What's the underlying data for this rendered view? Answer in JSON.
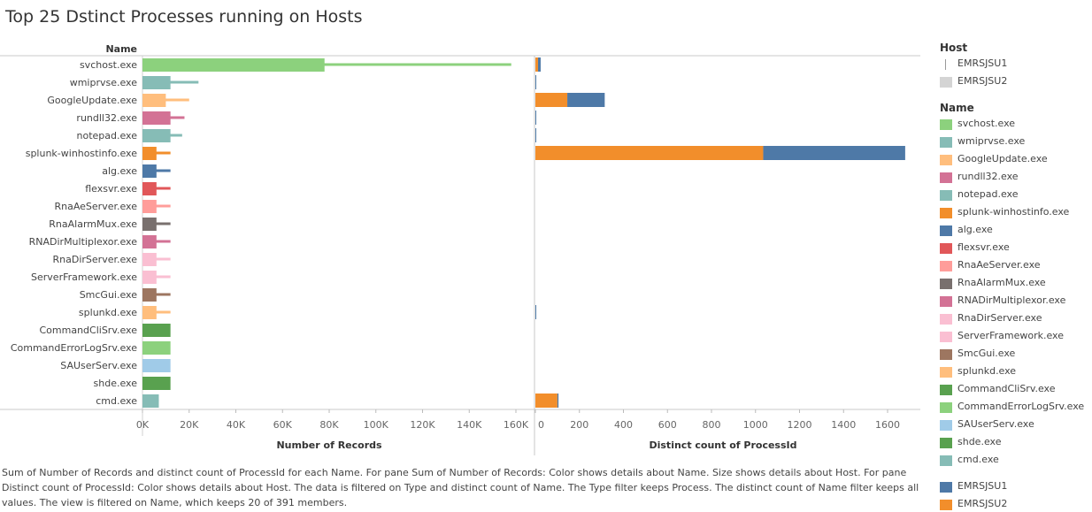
{
  "title": "Top 25 Dstinct Processes running on Hosts",
  "caption": "Sum of Number of Records and distinct count of ProcessId for each Name.  For pane Sum of Number of Records:  Color shows details about Name.  Size shows details about Host.  For pane Distinct count of ProcessId:  Color shows details about Host. The data is filtered on Type and distinct count of Name. The Type filter keeps Process. The distinct count of Name filter keeps all values. The view is filtered on Name, which keeps 20 of 391 members.",
  "legend": {
    "host_header": "Host",
    "host_items": [
      {
        "label": "EMRSJSU1",
        "icon": "thin-line"
      },
      {
        "label": "EMRSJSU2",
        "icon": "thick-bar",
        "color": "#d4d4d4"
      }
    ],
    "name_header": "Name",
    "name_items": [
      {
        "label": "svchost.exe",
        "color": "#8cd17d"
      },
      {
        "label": "wmiprvse.exe",
        "color": "#86bcb6"
      },
      {
        "label": "GoogleUpdate.exe",
        "color": "#ffbe7d"
      },
      {
        "label": "rundll32.exe",
        "color": "#d37295"
      },
      {
        "label": "notepad.exe",
        "color": "#86bcb6"
      },
      {
        "label": "splunk-winhostinfo.exe",
        "color": "#f28e2b"
      },
      {
        "label": "alg.exe",
        "color": "#4e79a7"
      },
      {
        "label": "flexsvr.exe",
        "color": "#e15759"
      },
      {
        "label": "RnaAeServer.exe",
        "color": "#ff9d9a"
      },
      {
        "label": "RnaAlarmMux.exe",
        "color": "#79706e"
      },
      {
        "label": "RNADirMultiplexor.exe",
        "color": "#d37295"
      },
      {
        "label": "RnaDirServer.exe",
        "color": "#fabfd2"
      },
      {
        "label": "ServerFramework.exe",
        "color": "#fabfd2"
      },
      {
        "label": "SmcGui.exe",
        "color": "#9d7660"
      },
      {
        "label": "splunkd.exe",
        "color": "#ffbe7d"
      },
      {
        "label": "CommandCliSrv.exe",
        "color": "#59a14f"
      },
      {
        "label": "CommandErrorLogSrv.exe",
        "color": "#8cd17d"
      },
      {
        "label": "SAUserServ.exe",
        "color": "#a0cbe8"
      },
      {
        "label": "shde.exe",
        "color": "#59a14f"
      },
      {
        "label": "cmd.exe",
        "color": "#86bcb6"
      }
    ],
    "host_color_items": [
      {
        "label": "EMRSJSU1",
        "color": "#4e79a7"
      },
      {
        "label": "EMRSJSU2",
        "color": "#f28e2b"
      }
    ]
  },
  "chart_data": [
    {
      "type": "bar",
      "orientation": "horizontal",
      "row_header": "Name",
      "xlabel": "Number of Records",
      "xlim": [
        0,
        160000
      ],
      "ticks": [
        "0K",
        "20K",
        "40K",
        "60K",
        "80K",
        "100K",
        "120K",
        "140K",
        "160K"
      ],
      "encoding": "thick bar = EMRSJSU2, thin line = EMRSJSU1, color = Name",
      "categories": [
        "svchost.exe",
        "wmiprvse.exe",
        "GoogleUpdate.exe",
        "rundll32.exe",
        "notepad.exe",
        "splunk-winhostinfo.exe",
        "alg.exe",
        "flexsvr.exe",
        "RnaAeServer.exe",
        "RnaAlarmMux.exe",
        "RNADirMultiplexor.exe",
        "RnaDirServer.exe",
        "ServerFramework.exe",
        "SmcGui.exe",
        "splunkd.exe",
        "CommandCliSrv.exe",
        "CommandErrorLogSrv.exe",
        "SAUserServ.exe",
        "shde.exe",
        "cmd.exe"
      ],
      "series": [
        {
          "name": "EMRSJSU1",
          "values": [
            158000,
            24000,
            20000,
            18000,
            17000,
            12000,
            12000,
            12000,
            12000,
            12000,
            12000,
            12000,
            12000,
            12000,
            12000,
            0,
            0,
            0,
            0,
            7000
          ]
        },
        {
          "name": "EMRSJSU2",
          "values": [
            78000,
            12000,
            10000,
            12000,
            12000,
            6000,
            6000,
            6000,
            6000,
            6000,
            6000,
            6000,
            6000,
            6000,
            6000,
            12000,
            12000,
            12000,
            12000,
            7000
          ]
        }
      ]
    },
    {
      "type": "bar",
      "orientation": "horizontal",
      "stacked": true,
      "xlabel": "Distinct count of ProcessId",
      "xlim": [
        0,
        1680
      ],
      "ticks": [
        "0",
        "200",
        "400",
        "600",
        "800",
        "1000",
        "1200",
        "1400",
        "1600"
      ],
      "categories": [
        "svchost.exe",
        "wmiprvse.exe",
        "GoogleUpdate.exe",
        "rundll32.exe",
        "notepad.exe",
        "splunk-winhostinfo.exe",
        "alg.exe",
        "flexsvr.exe",
        "RnaAeServer.exe",
        "RnaAlarmMux.exe",
        "RNADirMultiplexor.exe",
        "RnaDirServer.exe",
        "ServerFramework.exe",
        "SmcGui.exe",
        "splunkd.exe",
        "CommandCliSrv.exe",
        "CommandErrorLogSrv.exe",
        "SAUserServ.exe",
        "shde.exe",
        "cmd.exe"
      ],
      "series": [
        {
          "name": "EMRSJSU2",
          "color": "#f28e2b",
          "values": [
            12,
            0,
            145,
            0,
            0,
            1035,
            0,
            0,
            0,
            0,
            0,
            0,
            0,
            0,
            0,
            0,
            0,
            0,
            0,
            100
          ]
        },
        {
          "name": "EMRSJSU1",
          "color": "#4e79a7",
          "values": [
            12,
            4,
            170,
            4,
            4,
            645,
            0,
            0,
            0,
            0,
            0,
            0,
            0,
            0,
            4,
            0,
            0,
            0,
            0,
            5
          ]
        }
      ]
    }
  ]
}
